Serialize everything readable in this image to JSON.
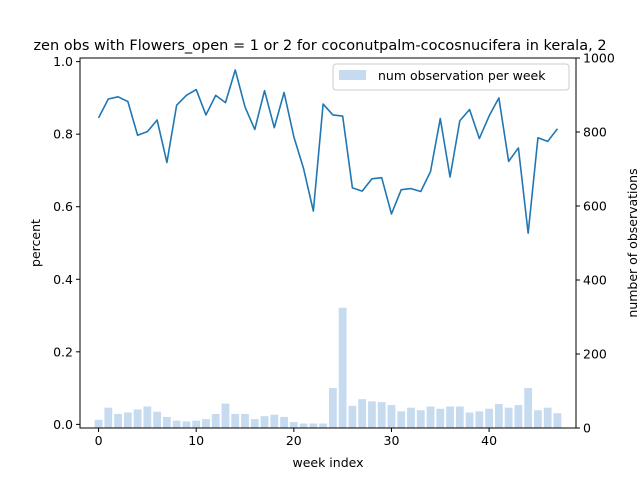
{
  "chart_data": {
    "type": "bar+line",
    "title": "zen obs with Flowers_open = 1 or 2 for coconutpalm-cocosnucifera in kerala, 2",
    "xlabel": "week index",
    "ylabel_left": "percent",
    "ylabel_right": "number of observations",
    "xlim": [
      -1.9,
      48.9
    ],
    "ylim_left": [
      -0.01,
      1.01
    ],
    "ylim_right": [
      0,
      1000
    ],
    "xticks": [
      0,
      10,
      20,
      30,
      40
    ],
    "yticks_left": [
      0.0,
      0.2,
      0.4,
      0.6,
      0.8,
      1.0
    ],
    "yticks_right": [
      0,
      200,
      400,
      600,
      800,
      1000
    ],
    "legend": {
      "position": "top-right",
      "entries": [
        "num observation per week"
      ]
    },
    "colors": {
      "line": "#1f77b4",
      "bars": "#c6dbef"
    },
    "x": [
      0,
      1,
      2,
      3,
      4,
      5,
      6,
      7,
      8,
      9,
      10,
      11,
      12,
      13,
      14,
      15,
      16,
      17,
      18,
      19,
      20,
      21,
      22,
      23,
      24,
      25,
      26,
      27,
      28,
      29,
      30,
      31,
      32,
      33,
      34,
      35,
      36,
      37,
      38,
      39,
      40,
      41,
      42,
      43,
      44,
      45,
      46,
      47
    ],
    "series": [
      {
        "kind": "bar",
        "axis": "right",
        "name": "num observation per week",
        "values": [
          22,
          55,
          38,
          42,
          50,
          58,
          44,
          30,
          20,
          18,
          20,
          24,
          38,
          66,
          38,
          38,
          24,
          32,
          36,
          30,
          16,
          12,
          12,
          12,
          108,
          325,
          60,
          78,
          72,
          70,
          62,
          45,
          55,
          48,
          58,
          52,
          58,
          58,
          42,
          45,
          52,
          65,
          55,
          62,
          108,
          48,
          55,
          40
        ]
      },
      {
        "kind": "line",
        "axis": "left",
        "values": [
          0.845,
          0.897,
          0.903,
          0.89,
          0.797,
          0.807,
          0.839,
          0.722,
          0.88,
          0.907,
          0.923,
          0.853,
          0.907,
          0.887,
          0.977,
          0.875,
          0.813,
          0.92,
          0.818,
          0.915,
          0.793,
          0.705,
          0.588,
          0.883,
          0.853,
          0.85,
          0.652,
          0.643,
          0.677,
          0.68,
          0.58,
          0.647,
          0.65,
          0.642,
          0.697,
          0.843,
          0.682,
          0.837,
          0.868,
          0.788,
          0.85,
          0.9,
          0.725,
          0.762,
          0.527,
          0.79,
          0.78,
          0.815
        ]
      }
    ]
  }
}
